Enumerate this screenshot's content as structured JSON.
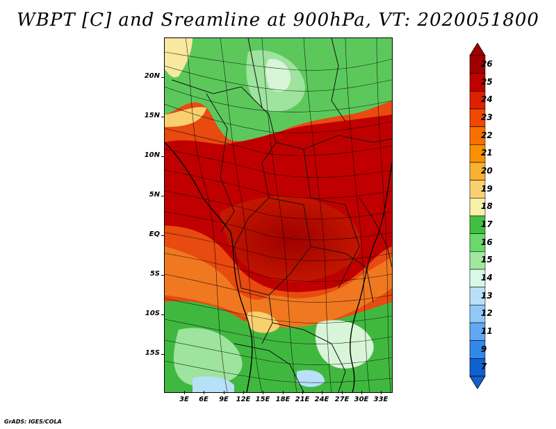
{
  "title": "WBPT [C] and Sreamline at 900hPa, VT: 2020051800",
  "credit": "GrADS: IGES/COLA",
  "map": {
    "lat_labels": [
      "20N",
      "15N",
      "10N",
      "5N",
      "EQ",
      "5S",
      "10S",
      "15S"
    ],
    "lon_labels": [
      "3E",
      "6E",
      "9E",
      "12E",
      "15E",
      "18E",
      "21E",
      "24E",
      "27E",
      "30E",
      "33E"
    ],
    "lat_range": [
      -20,
      24
    ],
    "lon_range": [
      0,
      34.5
    ],
    "field": "WBPT",
    "vector": "streamline"
  },
  "colorbar": {
    "labels": [
      "26",
      "25",
      "24",
      "23",
      "22",
      "21",
      "20",
      "19",
      "18",
      "17",
      "16",
      "15",
      "14",
      "13",
      "12",
      "11",
      "9",
      "7"
    ],
    "colors": [
      "#a00000",
      "#c00000",
      "#dc2000",
      "#f04800",
      "#f87000",
      "#f89000",
      "#f8b030",
      "#f8d070",
      "#f8f0a8",
      "#40c040",
      "#6ad86a",
      "#a0e8a0",
      "#d8f8e8",
      "#b8e0f8",
      "#90c8f8",
      "#60a8f0",
      "#3088e8",
      "#1060d0"
    ]
  }
}
